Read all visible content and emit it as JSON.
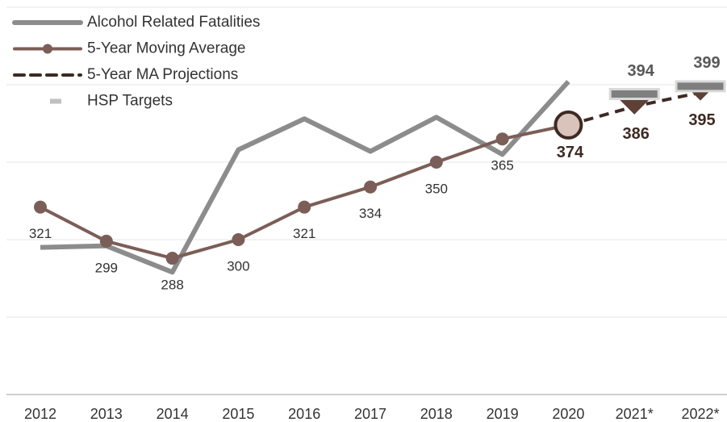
{
  "chart_data": {
    "type": "line",
    "categories": [
      "2012",
      "2013",
      "2014",
      "2015",
      "2016",
      "2017",
      "2018",
      "2019",
      "2020",
      "2021*",
      "2022*"
    ],
    "ylim": [
      200,
      450
    ],
    "yticks": [
      200,
      250,
      300,
      350,
      400,
      450
    ],
    "grid": true,
    "legend": "top-left",
    "series": [
      {
        "name": "Alcohol Related Fatalities",
        "color": "#8c8c8c",
        "style": "solid",
        "marker": "none",
        "data_labels": false,
        "values": [
          295,
          296,
          279,
          358,
          378,
          357,
          379,
          355,
          402,
          null,
          null
        ]
      },
      {
        "name": "5-Year Moving Average",
        "color": "#7b5e57",
        "style": "solid",
        "marker": "circle",
        "data_labels": true,
        "values": [
          321,
          299,
          288,
          300,
          321,
          334,
          350,
          365,
          374,
          null,
          null
        ]
      },
      {
        "name": "5-Year MA Projections",
        "color": "#3e2a24",
        "style": "dashed",
        "marker": "diamond",
        "data_labels": true,
        "values": [
          null,
          null,
          null,
          null,
          null,
          null,
          null,
          null,
          374,
          386,
          395
        ]
      },
      {
        "name": "HSP Targets",
        "color": "#bfbfbf",
        "style": "none",
        "marker": "bar",
        "data_labels": true,
        "values": [
          null,
          null,
          null,
          null,
          null,
          null,
          null,
          null,
          null,
          394,
          399
        ]
      }
    ]
  }
}
